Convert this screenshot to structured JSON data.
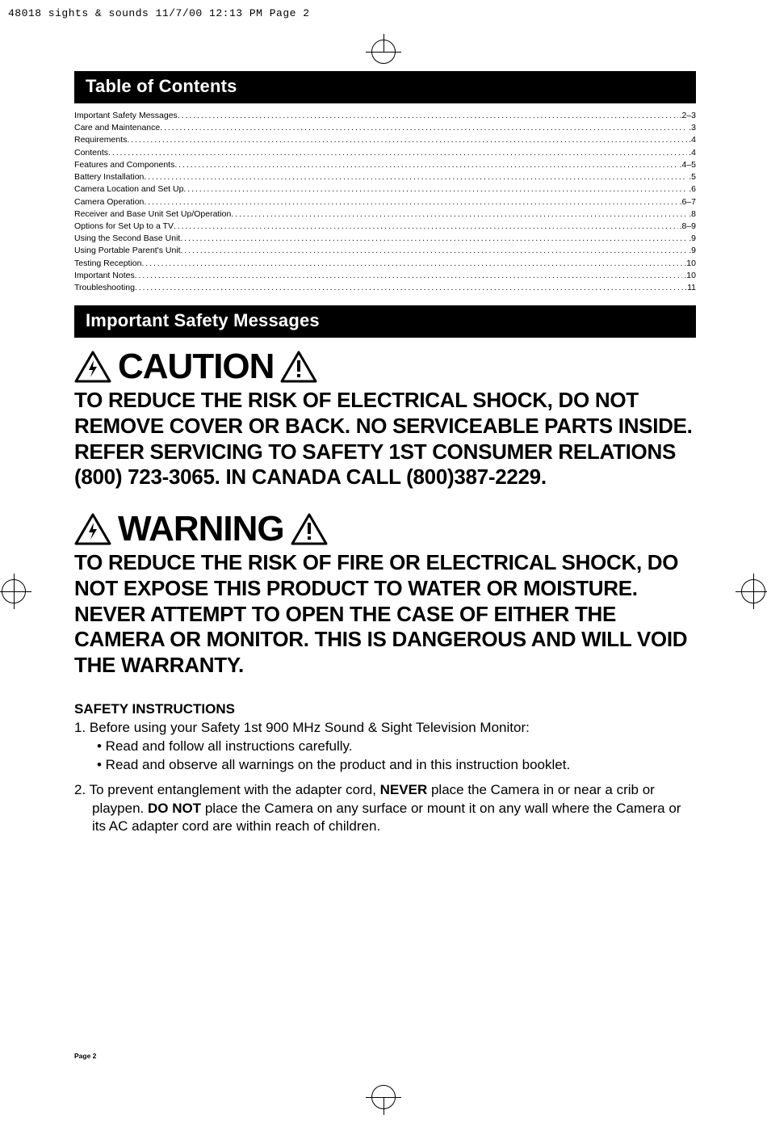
{
  "slug": "48018 sights & sounds  11/7/00  12:13 PM  Page 2",
  "toc_header": "Table of Contents",
  "toc": [
    {
      "label": "Important Safety Messages",
      "page": ".2–3"
    },
    {
      "label": "Care and Maintenance ",
      "page": ".3"
    },
    {
      "label": "Requirements ",
      "page": ".4"
    },
    {
      "label": "Contents",
      "page": ".4"
    },
    {
      "label": "Features and Components ",
      "page": ".4–5"
    },
    {
      "label": "Battery Installation ",
      "page": ".5"
    },
    {
      "label": "Camera Location and Set Up ",
      "page": ".6"
    },
    {
      "label": "Camera Operation ",
      "page": ".6–7"
    },
    {
      "label": "Receiver and Base Unit Set Up/Operation ",
      "page": ".8"
    },
    {
      "label": "Options for Set Up to a TV",
      "page": ".8–9"
    },
    {
      "label": "Using the Second Base Unit",
      "page": ".9"
    },
    {
      "label": "Using Portable Parent's Unit",
      "page": ".9"
    },
    {
      "label": "Testing Reception ",
      "page": ".10"
    },
    {
      "label": "Important Notes ",
      "page": ".10"
    },
    {
      "label": "Troubleshooting ",
      "page": ".11"
    }
  ],
  "safety_header": "Important Safety Messages",
  "caution": {
    "word": "CAUTION",
    "body": "TO REDUCE THE RISK OF ELECTRICAL SHOCK, DO NOT REMOVE COVER OR BACK. NO SERVICEABLE PARTS INSIDE.\nREFER SERVICING TO SAFETY 1ST CONSUMER RELATIONS (800) 723-3065. IN CANADA CALL (800)387-2229."
  },
  "warning": {
    "word": "WARNING",
    "body": "TO REDUCE THE RISK OF FIRE OR ELECTRICAL SHOCK, DO NOT EXPOSE THIS PRODUCT TO WATER OR MOISTURE. NEVER ATTEMPT TO OPEN THE CASE OF EITHER THE CAMERA OR MONITOR. THIS IS DANGEROUS AND WILL VOID THE WARRANTY."
  },
  "instructions": {
    "title": "SAFETY INSTRUCTIONS",
    "item1": "1.  Before using your Safety 1st 900 MHz Sound & Sight Television Monitor:",
    "item1a": "• Read and follow all instructions carefully.",
    "item1b": "• Read and observe all warnings on the product and in this instruction booklet.",
    "item2_pre": "2.  To prevent entanglement with the adapter cord, ",
    "item2_never": "NEVER",
    "item2_mid": " place the Camera in or near a crib or playpen. ",
    "item2_donot": "DO NOT",
    "item2_post": " place the Camera on any surface or mount it on any wall where the Camera or its AC adapter cord are within reach of children."
  },
  "page_num": "Page 2",
  "colors": {
    "black": "#000000",
    "white": "#ffffff"
  },
  "fontsizes": {
    "section_header": 22,
    "toc": 10.5,
    "big_word": 44,
    "body_bold": 26,
    "instructions": 17,
    "page_num": 8.5
  }
}
